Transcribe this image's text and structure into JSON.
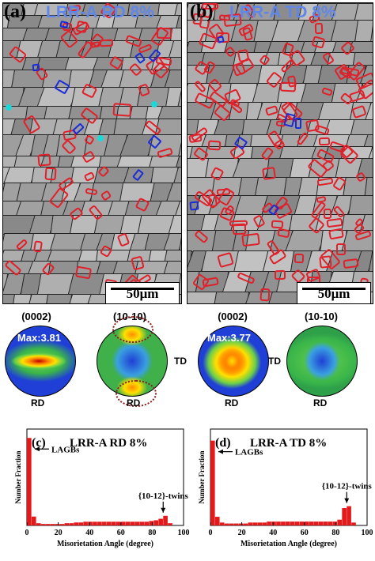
{
  "panel_a": {
    "label": "(a)",
    "title": "LRR-A RD 8%",
    "scale": "50μm"
  },
  "panel_b": {
    "label": "(b)",
    "title": "LRR-A TD 8%",
    "scale": "50μm"
  },
  "pole_figures": [
    {
      "title": "(0002)",
      "max": "Max:3.81",
      "rd": "RD",
      "td": ""
    },
    {
      "title": "(10-10)",
      "max": "",
      "rd": "RD",
      "td": "TD"
    },
    {
      "title": "(0002)",
      "max": "Max:3.77",
      "rd": "RD",
      "td": "TD"
    },
    {
      "title": "(10-10)",
      "max": "",
      "rd": "RD",
      "td": ""
    }
  ],
  "colors": {
    "red_twin": "#e0202a",
    "blue_twin": "#1b2bd6",
    "title_blue": "#5f86e8",
    "hist_bar": "#e31a1c"
  },
  "chart_data": [
    {
      "type": "bar",
      "panel_label": "(c)",
      "title": "LRR-A RD 8%",
      "xlabel": "Misorietation Angle (degree)",
      "ylabel": "Number Fraction",
      "xlim": [
        0,
        100
      ],
      "ylim": [
        0,
        0.13
      ],
      "xticks": [
        "0",
        "20",
        "40",
        "60",
        "80",
        "100"
      ],
      "yticks": [],
      "bin_width": 3,
      "x": [
        1.5,
        4.5,
        7.5,
        10.5,
        13.5,
        16.5,
        19.5,
        22.5,
        25.5,
        28.5,
        31.5,
        34.5,
        37.5,
        40.5,
        43.5,
        46.5,
        49.5,
        52.5,
        55.5,
        58.5,
        61.5,
        64.5,
        67.5,
        70.5,
        73.5,
        76.5,
        79.5,
        82.5,
        85.5,
        88.5,
        91.5
      ],
      "values": [
        0.118,
        0.012,
        0.003,
        0.002,
        0.002,
        0.002,
        0.002,
        0.002,
        0.003,
        0.003,
        0.004,
        0.004,
        0.005,
        0.005,
        0.005,
        0.005,
        0.005,
        0.005,
        0.005,
        0.005,
        0.005,
        0.005,
        0.005,
        0.005,
        0.005,
        0.005,
        0.006,
        0.007,
        0.009,
        0.013,
        0.003
      ],
      "annotations": [
        "LAGBs",
        "{10-12}-twins"
      ]
    },
    {
      "type": "bar",
      "panel_label": "(d)",
      "title": "LRR-A TD 8%",
      "xlabel": "Misorietation Angle (degree)",
      "ylabel": "Number Fraction",
      "xlim": [
        0,
        100
      ],
      "ylim": [
        0,
        0.1
      ],
      "xticks": [
        "0",
        "20",
        "40",
        "60",
        "80",
        "100"
      ],
      "yticks": [],
      "bin_width": 3,
      "x": [
        1.5,
        4.5,
        7.5,
        10.5,
        13.5,
        16.5,
        19.5,
        22.5,
        25.5,
        28.5,
        31.5,
        34.5,
        37.5,
        40.5,
        43.5,
        46.5,
        49.5,
        52.5,
        55.5,
        58.5,
        61.5,
        64.5,
        67.5,
        70.5,
        73.5,
        76.5,
        79.5,
        82.5,
        85.5,
        88.5,
        91.5
      ],
      "values": [
        0.088,
        0.009,
        0.003,
        0.002,
        0.002,
        0.002,
        0.002,
        0.002,
        0.003,
        0.003,
        0.003,
        0.003,
        0.004,
        0.004,
        0.004,
        0.004,
        0.004,
        0.004,
        0.004,
        0.004,
        0.004,
        0.004,
        0.004,
        0.004,
        0.004,
        0.004,
        0.004,
        0.006,
        0.018,
        0.02,
        0.003
      ],
      "annotations": [
        "LAGBs",
        "{10-12}-twins"
      ]
    }
  ]
}
